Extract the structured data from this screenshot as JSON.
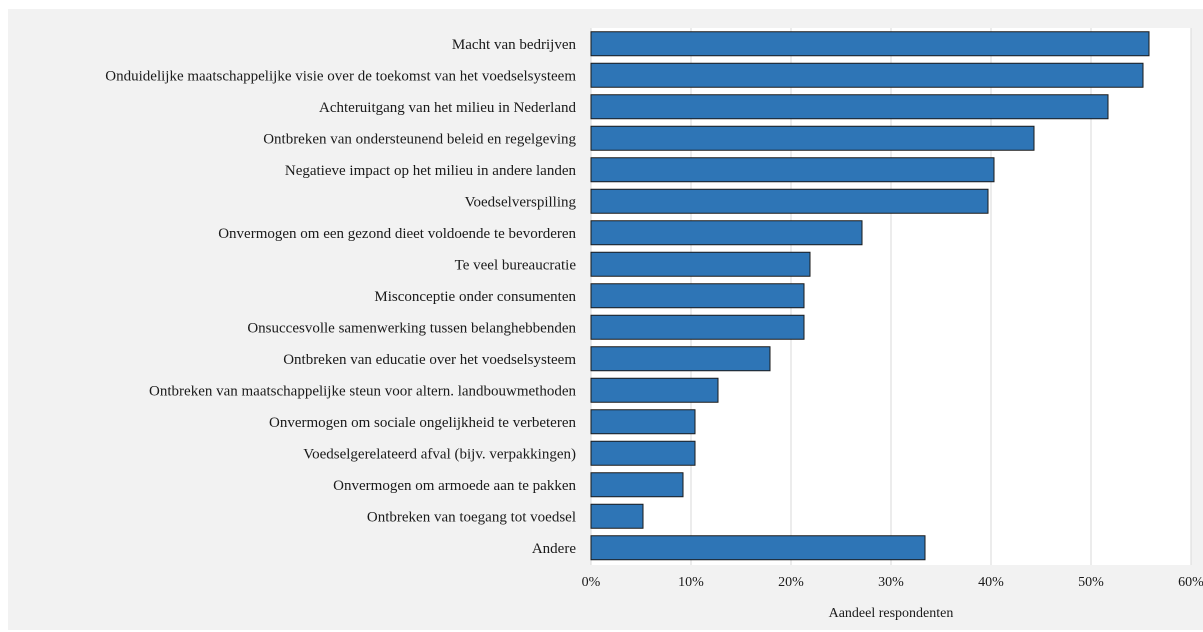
{
  "chart_data": {
    "type": "bar",
    "orientation": "horizontal",
    "categories": [
      "Macht van bedrijven",
      "Onduidelijke maatschappelijke visie over de toekomst van het voedselsysteem",
      "Achteruitgang van het milieu in Nederland",
      "Ontbreken van ondersteunend beleid en regelgeving",
      "Negatieve impact op het milieu in andere landen",
      "Voedselverspilling",
      "Onvermogen om een gezond dieet voldoende te bevorderen",
      "Te veel bureaucratie",
      "Misconceptie onder consumenten",
      "Onsuccesvolle samenwerking tussen belanghebbenden",
      "Ontbreken van educatie over het voedselsysteem",
      "Ontbreken van maatschappelijke steun voor altern. landbouwmethoden",
      "Onvermogen om sociale ongelijkheid te verbeteren",
      "Voedselgerelateerd afval (bijv. verpakkingen)",
      "Onvermogen om armoede aan te pakken",
      "Ontbreken van toegang tot voedsel",
      "Andere"
    ],
    "values": [
      55.8,
      55.2,
      51.7,
      44.3,
      40.3,
      39.7,
      27.1,
      21.9,
      21.3,
      21.3,
      17.9,
      12.7,
      10.4,
      10.4,
      9.2,
      5.2,
      33.4
    ],
    "xlim": [
      0,
      60
    ],
    "xticks": [
      "0%",
      "10%",
      "20%",
      "30%",
      "40%",
      "50%",
      "60%"
    ],
    "xtick_values": [
      0,
      10,
      20,
      30,
      40,
      50,
      60
    ],
    "xlabel": "Aandeel respondenten",
    "ylabel": "",
    "title": "",
    "grid": true,
    "colors": {
      "bar": "#2e75b6",
      "bar_edge": "#1a1a1a",
      "grid": "#d9d9d9",
      "plot_bg": "#ffffff",
      "frame_bg": "#f2f2f2"
    }
  }
}
